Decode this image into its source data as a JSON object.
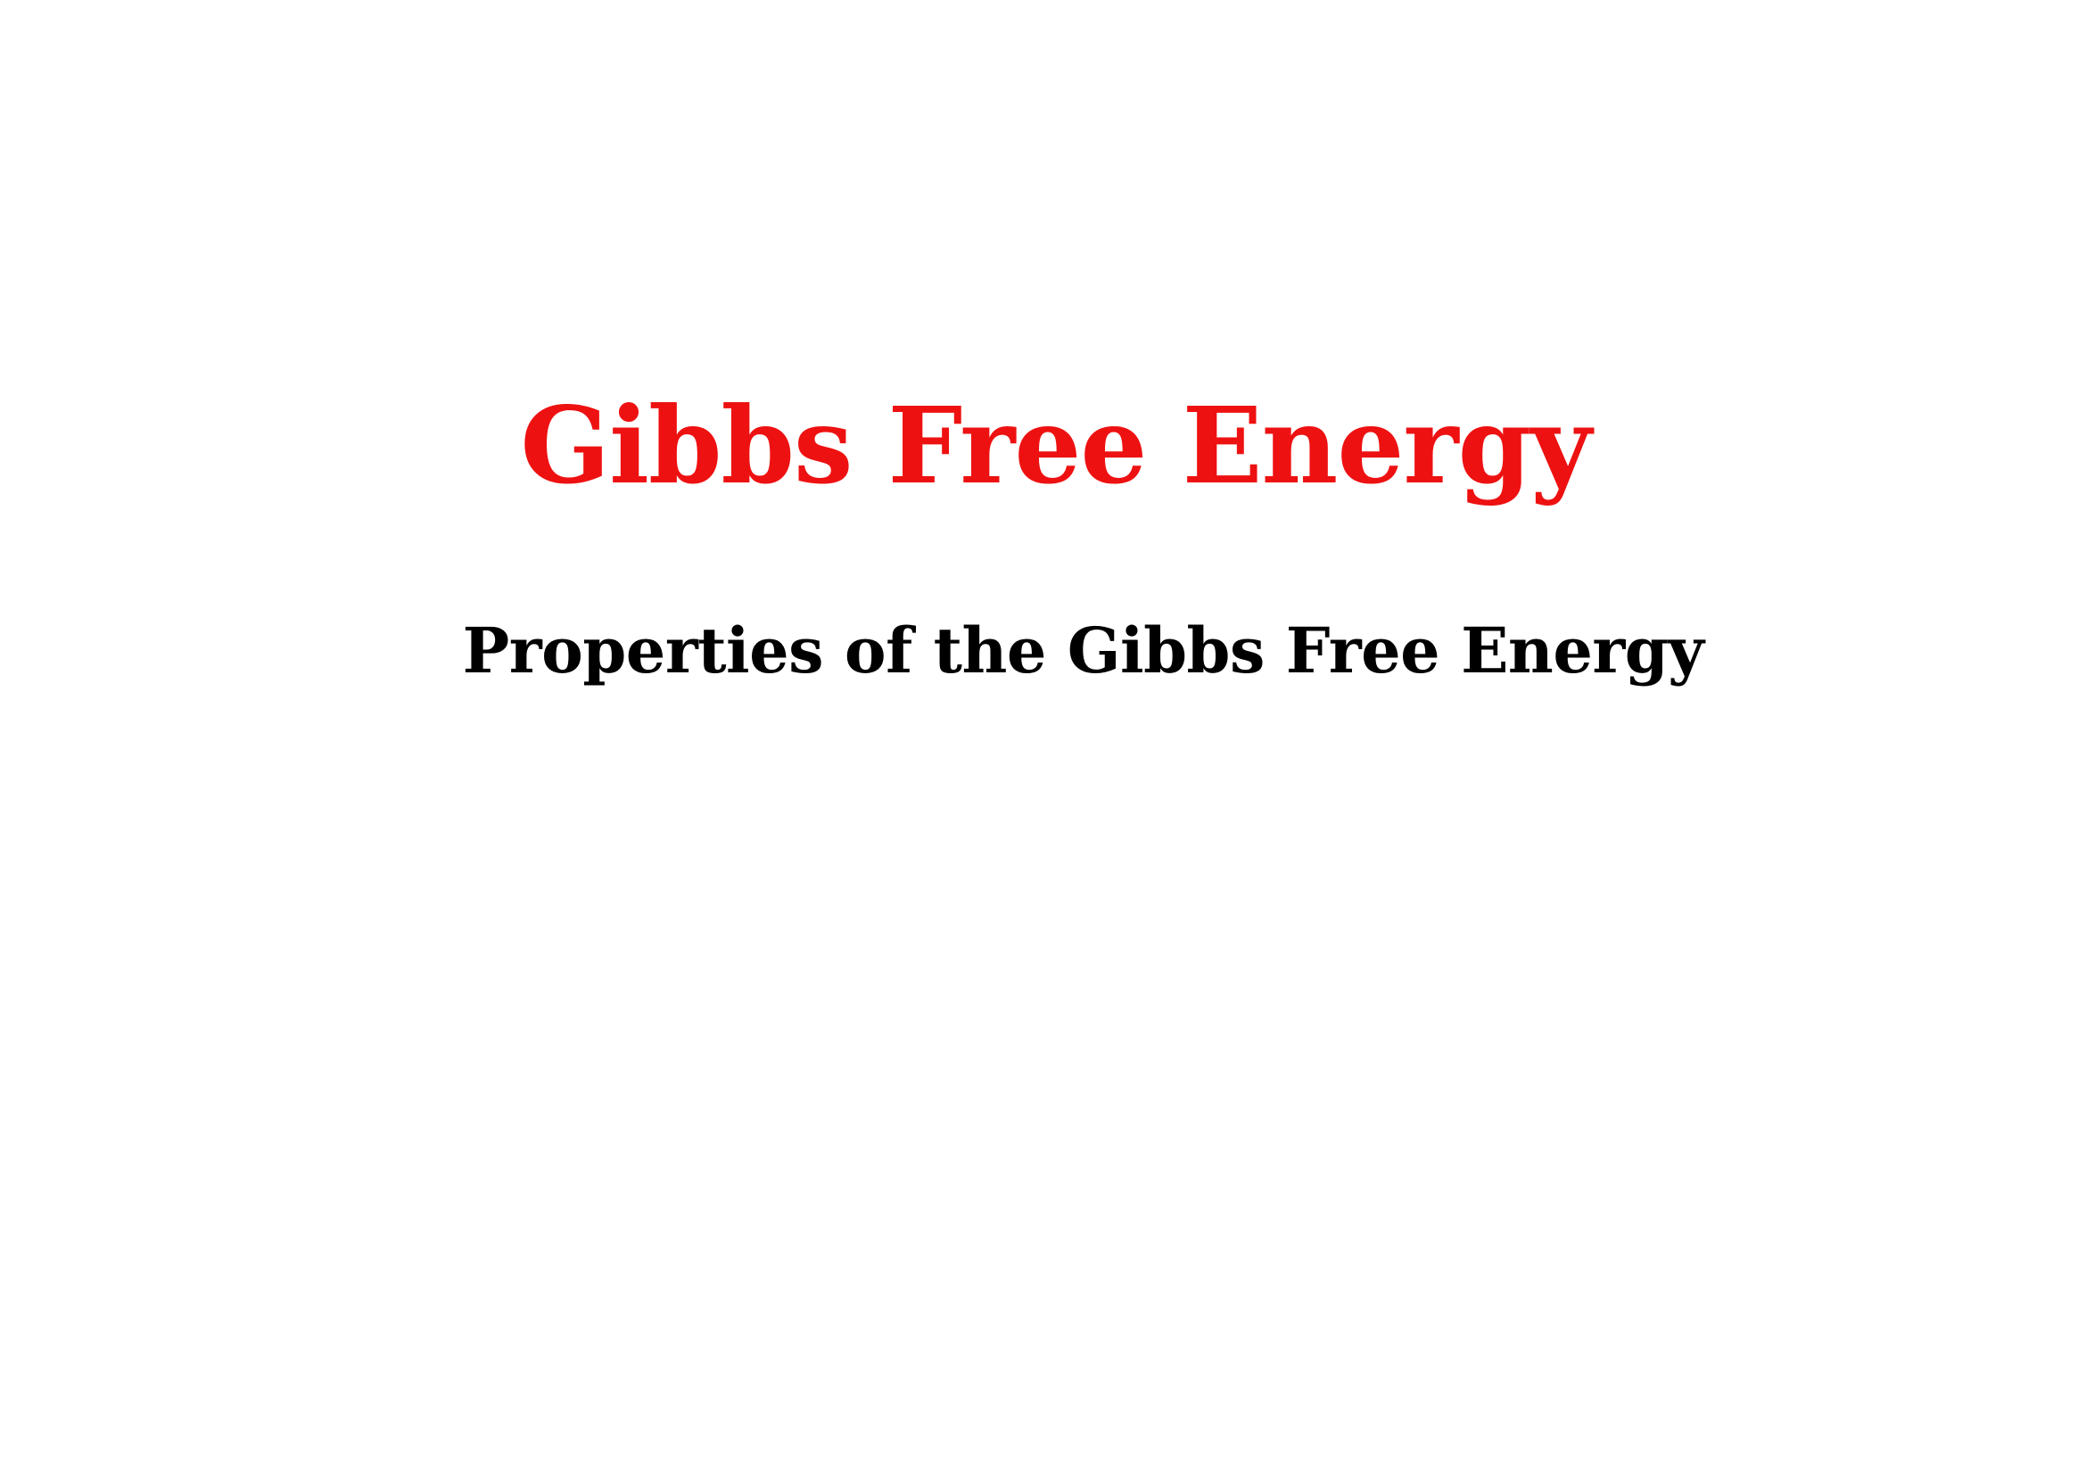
{
  "document": {
    "title": "Gibbs Free Energy",
    "subtitle": "Properties of the Gibbs Free Energy"
  },
  "colors": {
    "title": "#ee1111",
    "subtitle": "#000000",
    "background": "#ffffff"
  }
}
